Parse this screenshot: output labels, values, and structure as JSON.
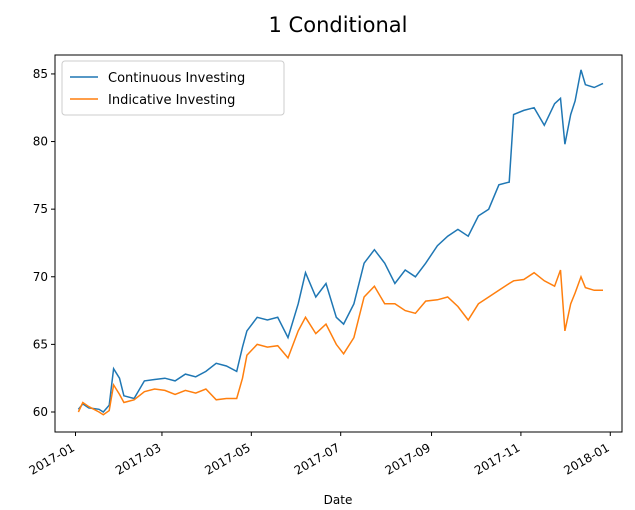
{
  "chart_data": {
    "type": "line",
    "title": "1 Conditional",
    "x_label": "Date",
    "x": [
      "2017-01-03",
      "2017-01-06",
      "2017-01-10",
      "2017-01-17",
      "2017-01-20",
      "2017-01-24",
      "2017-01-27",
      "2017-01-31",
      "2017-02-03",
      "2017-02-10",
      "2017-02-17",
      "2017-02-24",
      "2017-03-03",
      "2017-03-10",
      "2017-03-17",
      "2017-03-24",
      "2017-03-31",
      "2017-04-07",
      "2017-04-14",
      "2017-04-21",
      "2017-04-25",
      "2017-04-28",
      "2017-05-05",
      "2017-05-12",
      "2017-05-19",
      "2017-05-26",
      "2017-06-02",
      "2017-06-07",
      "2017-06-14",
      "2017-06-21",
      "2017-06-28",
      "2017-07-03",
      "2017-07-10",
      "2017-07-17",
      "2017-07-24",
      "2017-07-31",
      "2017-08-07",
      "2017-08-14",
      "2017-08-21",
      "2017-08-28",
      "2017-09-05",
      "2017-09-12",
      "2017-09-19",
      "2017-09-26",
      "2017-10-03",
      "2017-10-10",
      "2017-10-17",
      "2017-10-24",
      "2017-10-27",
      "2017-11-03",
      "2017-11-10",
      "2017-11-17",
      "2017-11-24",
      "2017-11-28",
      "2017-12-01",
      "2017-12-05",
      "2017-12-08",
      "2017-12-12",
      "2017-12-15",
      "2017-12-21",
      "2017-12-27"
    ],
    "series": [
      {
        "name": "Continuous Investing",
        "color": "#1f77b4",
        "values": [
          60.2,
          60.6,
          60.3,
          60.2,
          60.0,
          60.5,
          63.2,
          62.5,
          61.2,
          61.0,
          62.3,
          62.4,
          62.5,
          62.3,
          62.8,
          62.6,
          63.0,
          63.6,
          63.4,
          63.0,
          64.8,
          66.0,
          67.0,
          66.8,
          67.0,
          65.5,
          68.0,
          70.3,
          68.5,
          69.5,
          67.0,
          66.5,
          68.0,
          71.0,
          72.0,
          71.0,
          69.5,
          70.5,
          70.0,
          71.0,
          72.3,
          73.0,
          73.5,
          73.0,
          74.5,
          75.0,
          76.8,
          77.0,
          82.0,
          82.3,
          82.5,
          81.2,
          82.8,
          83.2,
          79.8,
          82.0,
          83.0,
          85.3,
          84.2,
          84.0,
          84.3
        ]
      },
      {
        "name": "Indicative Investing",
        "color": "#ff7f0e",
        "values": [
          60.0,
          60.7,
          60.4,
          60.0,
          59.8,
          60.1,
          62.0,
          61.3,
          60.7,
          60.9,
          61.5,
          61.7,
          61.6,
          61.3,
          61.6,
          61.4,
          61.7,
          60.9,
          61.0,
          61.0,
          62.5,
          64.2,
          65.0,
          64.8,
          64.9,
          64.0,
          66.0,
          67.0,
          65.8,
          66.5,
          65.0,
          64.3,
          65.5,
          68.5,
          69.3,
          68.0,
          68.0,
          67.5,
          67.3,
          68.2,
          68.3,
          68.5,
          67.8,
          66.8,
          68.0,
          68.5,
          69.0,
          69.5,
          69.7,
          69.8,
          70.3,
          69.7,
          69.3,
          70.5,
          66.0,
          68.0,
          68.8,
          70.0,
          69.2,
          69.0,
          69.0
        ]
      }
    ],
    "xlim": [
      "2016-12-18",
      "2018-01-09"
    ],
    "xticks": [
      "2017-01",
      "2017-03",
      "2017-05",
      "2017-07",
      "2017-09",
      "2017-11",
      "2018-01"
    ],
    "ylim": [
      58.52,
      86.4
    ],
    "yticks": [
      60,
      65,
      70,
      75,
      80,
      85
    ],
    "legend": "upper left",
    "grid": false
  }
}
